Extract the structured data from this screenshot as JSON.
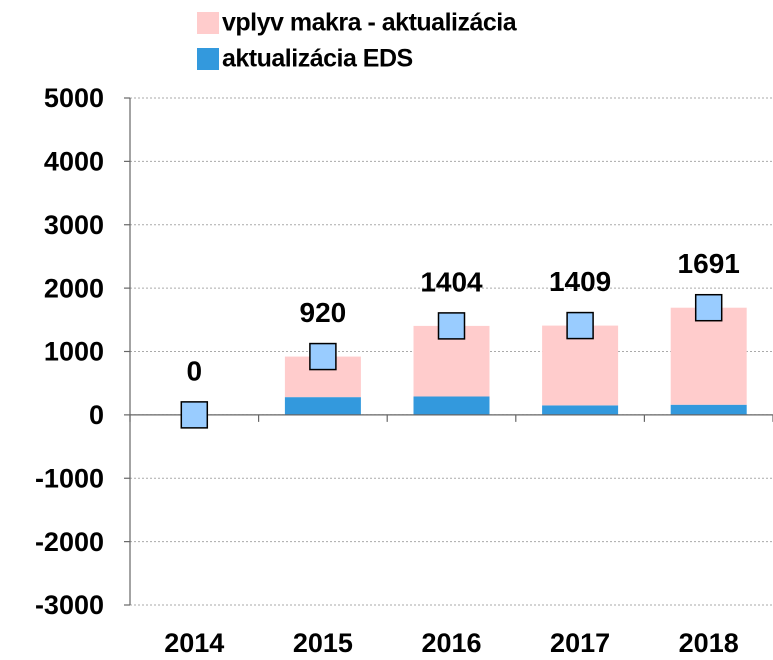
{
  "chart_data": {
    "type": "bar",
    "categories": [
      "2014",
      "2015",
      "2016",
      "2017",
      "2018"
    ],
    "series": [
      {
        "name": "vplyv makra - aktualizácia",
        "color": "#ffcccc",
        "values": [
          0,
          640,
          1114,
          1259,
          1531
        ]
      },
      {
        "name": "aktualizácia EDS",
        "color": "#3399dd",
        "values": [
          0,
          280,
          290,
          150,
          160
        ]
      }
    ],
    "markers": {
      "color": "#99ccff",
      "values": [
        0,
        920,
        1404,
        1409,
        1691
      ]
    },
    "ylim": [
      -3000,
      5000
    ],
    "yticks": [
      -3000,
      -2000,
      -1000,
      0,
      1000,
      2000,
      3000,
      4000,
      5000
    ],
    "grid": true,
    "legend": "top"
  }
}
